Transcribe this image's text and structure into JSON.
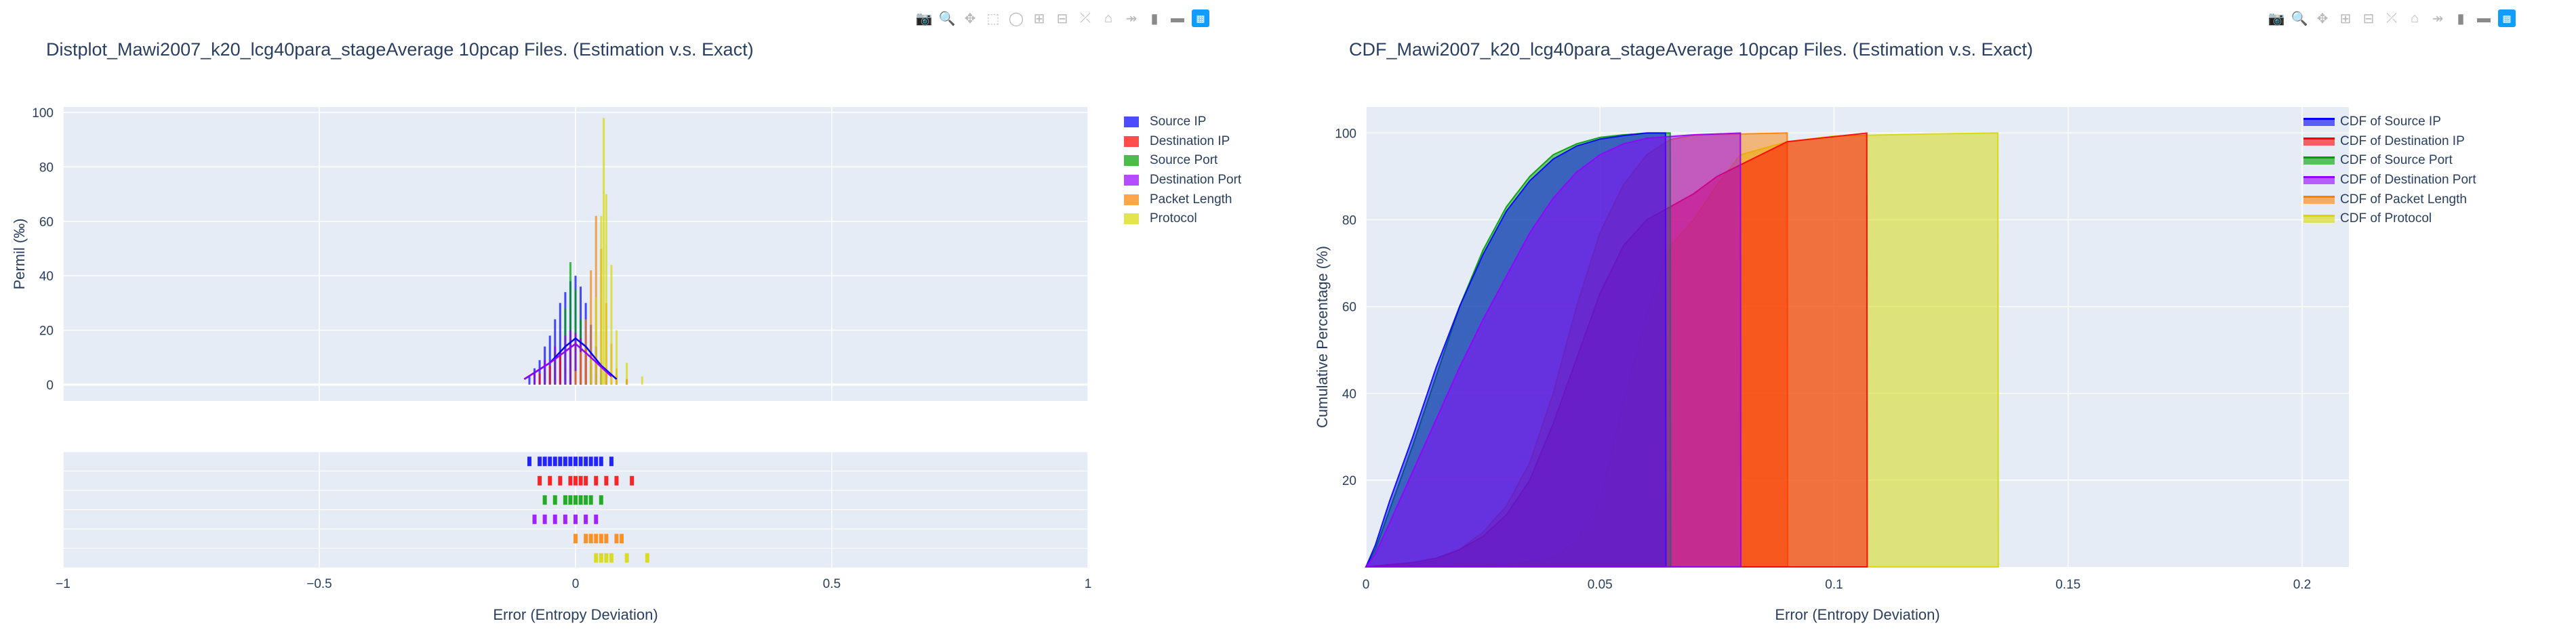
{
  "toolbar": {
    "icons": [
      "camera-icon",
      "zoom-icon",
      "pan-icon",
      "box-select-icon",
      "lasso-icon",
      "zoom-in-icon",
      "zoom-out-icon",
      "autoscale-icon",
      "home-icon",
      "spike-icon",
      "hover-closest-icon",
      "hover-compare-icon",
      "plotly-logo-icon"
    ]
  },
  "colors": {
    "plot_bg": "#e5ecf6",
    "source_ip": "#0000ff",
    "destination_ip": "#ff0000",
    "source_port": "#00a000",
    "destination_port": "#9400ff",
    "packet_length": "#ff8000",
    "protocol": "#d8d800"
  },
  "chart_data": [
    {
      "type": "histogram",
      "title": "Distplot_Mawi2007_k20_lcg40para_stageAverage 10pcap Files. (Estimation v.s. Exact)",
      "xlabel": "Error (Entropy Deviation)",
      "ylabel": "Permil (‰)",
      "xlim": [
        -1,
        1
      ],
      "ylim": [
        -6,
        102
      ],
      "x_ticks": [
        "−1",
        "−0.5",
        "0",
        "0.5",
        "1"
      ],
      "y_ticks": [
        "0",
        "20",
        "40",
        "60",
        "80",
        "100"
      ],
      "legend_position": "right",
      "series": [
        {
          "name": "Source IP",
          "color": "#0000ff",
          "bins": [
            [
              -0.09,
              3
            ],
            [
              -0.08,
              6
            ],
            [
              -0.07,
              9
            ],
            [
              -0.06,
              14
            ],
            [
              -0.05,
              18
            ],
            [
              -0.04,
              24
            ],
            [
              -0.03,
              30
            ],
            [
              -0.02,
              34
            ],
            [
              -0.01,
              38
            ],
            [
              0.0,
              40
            ],
            [
              0.01,
              36
            ],
            [
              0.02,
              30
            ],
            [
              0.03,
              22
            ],
            [
              0.04,
              14
            ],
            [
              0.05,
              8
            ],
            [
              0.06,
              4
            ]
          ],
          "rug": [
            -0.09,
            -0.07,
            -0.06,
            -0.05,
            -0.04,
            -0.03,
            -0.02,
            -0.01,
            0.0,
            0.01,
            0.02,
            0.03,
            0.04,
            0.05,
            0.07
          ]
        },
        {
          "name": "Destination IP",
          "color": "#ff0000",
          "bins": [
            [
              -0.07,
              4
            ],
            [
              -0.05,
              7
            ],
            [
              -0.03,
              12
            ],
            [
              -0.01,
              17
            ],
            [
              0.0,
              19
            ],
            [
              0.01,
              17
            ],
            [
              0.02,
              14
            ],
            [
              0.04,
              10
            ],
            [
              0.06,
              6
            ],
            [
              0.08,
              3
            ],
            [
              0.1,
              2
            ]
          ],
          "rug": [
            -0.07,
            -0.05,
            -0.03,
            -0.01,
            0.0,
            0.01,
            0.02,
            0.04,
            0.06,
            0.08,
            0.11
          ]
        },
        {
          "name": "Source Port",
          "color": "#00a000",
          "bins": [
            [
              -0.06,
              5
            ],
            [
              -0.04,
              12
            ],
            [
              -0.02,
              28
            ],
            [
              -0.01,
              45
            ],
            [
              0.0,
              35
            ],
            [
              0.01,
              24
            ],
            [
              0.02,
              14
            ],
            [
              0.03,
              6
            ],
            [
              0.05,
              3
            ]
          ],
          "rug": [
            -0.06,
            -0.04,
            -0.02,
            -0.01,
            0.0,
            0.01,
            0.02,
            0.03,
            0.05
          ]
        },
        {
          "name": "Destination Port",
          "color": "#9400ff",
          "bins": [
            [
              -0.08,
              4
            ],
            [
              -0.06,
              9
            ],
            [
              -0.04,
              14
            ],
            [
              -0.02,
              18
            ],
            [
              -0.01,
              20
            ],
            [
              0.0,
              19
            ],
            [
              0.01,
              17
            ],
            [
              0.02,
              12
            ],
            [
              0.03,
              8
            ],
            [
              0.04,
              4
            ]
          ],
          "rug": [
            -0.08,
            -0.06,
            -0.04,
            -0.02,
            0.0,
            0.02,
            0.04
          ]
        },
        {
          "name": "Packet Length",
          "color": "#ff8000",
          "bins": [
            [
              0.0,
              5
            ],
            [
              0.01,
              12
            ],
            [
              0.02,
              24
            ],
            [
              0.03,
              42
            ],
            [
              0.04,
              62
            ],
            [
              0.05,
              50
            ],
            [
              0.06,
              30
            ],
            [
              0.07,
              15
            ],
            [
              0.08,
              6
            ]
          ],
          "rug": [
            0.0,
            0.02,
            0.03,
            0.04,
            0.05,
            0.06,
            0.08,
            0.09
          ]
        },
        {
          "name": "Protocol",
          "color": "#d8d800",
          "bins": [
            [
              0.03,
              10
            ],
            [
              0.04,
              32
            ],
            [
              0.05,
              62
            ],
            [
              0.055,
              98
            ],
            [
              0.06,
              70
            ],
            [
              0.07,
              44
            ],
            [
              0.08,
              20
            ],
            [
              0.1,
              8
            ],
            [
              0.13,
              3
            ]
          ],
          "rug": [
            0.04,
            0.05,
            0.06,
            0.07,
            0.1,
            0.14
          ]
        }
      ],
      "density_curves": [
        {
          "series": "Source IP",
          "points": [
            [
              -0.1,
              2
            ],
            [
              -0.05,
              8
            ],
            [
              -0.02,
              14
            ],
            [
              0.0,
              17
            ],
            [
              0.02,
              14
            ],
            [
              0.05,
              7
            ],
            [
              0.08,
              2
            ]
          ]
        },
        {
          "series": "Destination Port",
          "points": [
            [
              -0.1,
              2
            ],
            [
              -0.05,
              8
            ],
            [
              0.0,
              15
            ],
            [
              0.03,
              10
            ],
            [
              0.07,
              3
            ]
          ]
        }
      ]
    },
    {
      "type": "area",
      "title": "CDF_Mawi2007_k20_lcg40para_stageAverage 10pcap Files. (Estimation v.s. Exact)",
      "xlabel": "Error (Entropy Deviation)",
      "ylabel": "Cumulative Percentage (%)",
      "xlim": [
        0,
        0.21
      ],
      "ylim": [
        0,
        106
      ],
      "x_ticks": [
        "0",
        "0.05",
        "0.1",
        "0.15",
        "0.2"
      ],
      "y_ticks": [
        "20",
        "40",
        "60",
        "80",
        "100"
      ],
      "legend_position": "right",
      "series": [
        {
          "name": "CDF of Source IP",
          "color": "#0000ff",
          "x": [
            0,
            0.002,
            0.005,
            0.01,
            0.015,
            0.02,
            0.025,
            0.03,
            0.035,
            0.04,
            0.045,
            0.05,
            0.055,
            0.06,
            0.064,
            0.0641
          ],
          "y": [
            0,
            5,
            15,
            30,
            46,
            60,
            72,
            82,
            89,
            94,
            97,
            98.6,
            99.4,
            100,
            100,
            0
          ]
        },
        {
          "name": "CDF of Destination IP",
          "color": "#ff0000",
          "x": [
            0,
            0.005,
            0.01,
            0.015,
            0.02,
            0.025,
            0.03,
            0.035,
            0.04,
            0.045,
            0.05,
            0.055,
            0.06,
            0.065,
            0.07,
            0.075,
            0.09,
            0.107,
            0.1071
          ],
          "y": [
            0,
            0.5,
            1,
            2,
            4,
            7,
            12,
            20,
            33,
            48,
            63,
            74,
            80,
            83,
            86,
            90,
            98,
            100,
            0
          ]
        },
        {
          "name": "CDF of Source Port",
          "color": "#00a000",
          "x": [
            0,
            0.002,
            0.005,
            0.01,
            0.015,
            0.02,
            0.025,
            0.03,
            0.035,
            0.04,
            0.045,
            0.05,
            0.055,
            0.06,
            0.065,
            0.0651
          ],
          "y": [
            0,
            4,
            13,
            28,
            44,
            60,
            73,
            83,
            90,
            95,
            97.5,
            99,
            99.6,
            100,
            100,
            0
          ]
        },
        {
          "name": "CDF of Destination Port",
          "color": "#9400ff",
          "x": [
            0,
            0.002,
            0.005,
            0.01,
            0.015,
            0.02,
            0.025,
            0.03,
            0.035,
            0.04,
            0.045,
            0.05,
            0.055,
            0.06,
            0.07,
            0.08,
            0.0801
          ],
          "y": [
            0,
            3,
            10,
            22,
            34,
            46,
            57,
            67,
            77,
            85,
            91,
            95,
            97.5,
            98.8,
            99.6,
            100,
            0
          ]
        },
        {
          "name": "CDF of Packet Length",
          "color": "#ff8000",
          "x": [
            0,
            0.01,
            0.015,
            0.02,
            0.025,
            0.03,
            0.035,
            0.04,
            0.045,
            0.05,
            0.055,
            0.06,
            0.065,
            0.07,
            0.08,
            0.0899,
            0.09,
            0.0901
          ],
          "y": [
            0,
            0.5,
            1.5,
            4,
            8,
            14,
            24,
            40,
            60,
            77,
            88,
            95,
            98.5,
            99.5,
            99.8,
            100,
            100,
            0
          ]
        },
        {
          "name": "CDF of Protocol",
          "color": "#d8d800",
          "x": [
            0,
            0.02,
            0.03,
            0.04,
            0.045,
            0.05,
            0.055,
            0.06,
            0.065,
            0.07,
            0.075,
            0.08,
            0.09,
            0.1,
            0.12,
            0.135,
            0.1351
          ],
          "y": [
            0,
            0.2,
            0.5,
            2,
            6,
            15,
            38,
            58,
            74,
            80,
            88,
            95,
            98,
            99.3,
            99.8,
            100,
            0
          ]
        }
      ]
    }
  ]
}
